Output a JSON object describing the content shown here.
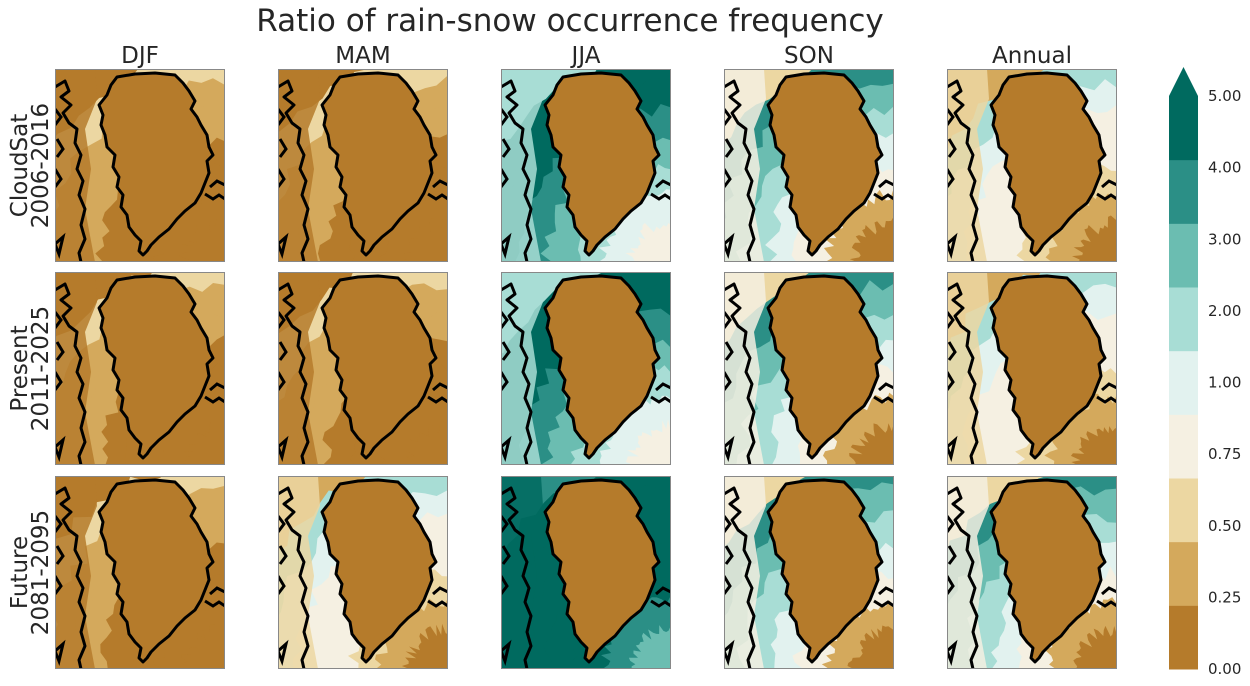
{
  "chart_data": {
    "type": "heatmap",
    "title": "Ratio of rain-snow occurrence frequency",
    "columns": [
      "DJF",
      "MAM",
      "JJA",
      "SON",
      "Annual"
    ],
    "rows": [
      {
        "name": "CloudSat",
        "period": "2006-2016"
      },
      {
        "name": "Present",
        "period": "2011-2025"
      },
      {
        "name": "Future",
        "period": "2081-2095"
      }
    ],
    "colorbar": {
      "bounds": [
        "0.00",
        "0.25",
        "0.50",
        "0.75",
        "1.00",
        "2.00",
        "3.00",
        "4.00",
        "5.00"
      ],
      "colors": [
        "#b57b2b",
        "#d4a95c",
        "#ecd7a2",
        "#f5f0e2",
        "#e2f2ef",
        "#a8ddd5",
        "#6bbdb1",
        "#2b8f86",
        "#006a5f"
      ],
      "extend": "max"
    },
    "panels": [
      [
        "very_low",
        "very_low",
        "high",
        "moderate",
        "low"
      ],
      [
        "very_low",
        "very_low",
        "high",
        "moderate",
        "low"
      ],
      [
        "very_low",
        "low",
        "very_high",
        "moderate",
        "moderate"
      ]
    ]
  }
}
